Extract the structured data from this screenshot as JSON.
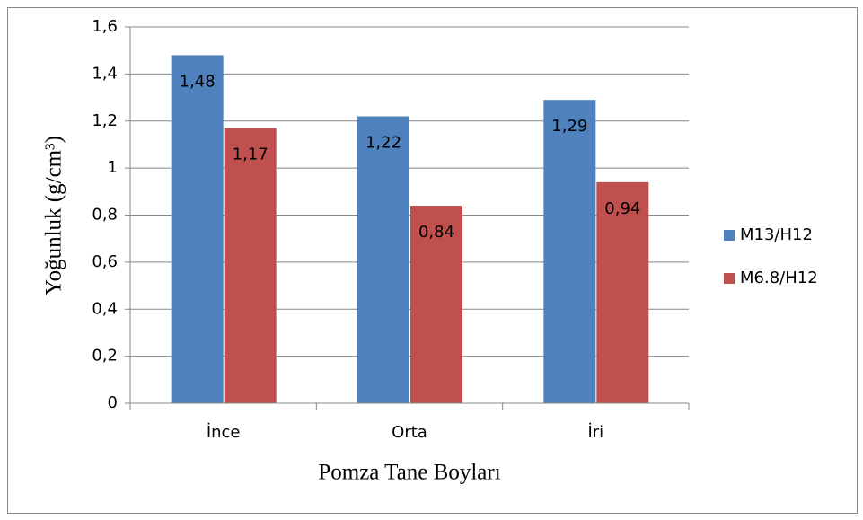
{
  "chart_data": {
    "type": "bar",
    "x_label": "Pomza Tane Boyları",
    "y_label": "Yoğunluk (g/cm³)",
    "categories": [
      "İnce",
      "Orta",
      "İri"
    ],
    "series": [
      {
        "name": "M13/H12",
        "color": "#4f81bd",
        "values": [
          1.48,
          1.22,
          1.29
        ],
        "value_labels": [
          "1,48",
          "1,22",
          "1,29"
        ]
      },
      {
        "name": "M6.8/H12",
        "color": "#c0504d",
        "values": [
          1.17,
          0.84,
          0.94
        ],
        "value_labels": [
          "1,17",
          "0,84",
          "0,94"
        ]
      }
    ],
    "ylim": [
      0,
      1.6
    ],
    "yticks": [
      0,
      {
        "value": 0.2,
        "label": "0,2"
      },
      {
        "value": 0.4,
        "label": "0,4"
      },
      {
        "value": 0.6,
        "label": "0,6"
      },
      {
        "value": 0.8,
        "label": "0,8"
      },
      1,
      {
        "value": 1.2,
        "label": "1,2"
      },
      {
        "value": 1.4,
        "label": "1,4"
      },
      {
        "value": 1.6,
        "label": "1,6"
      }
    ],
    "grid": true,
    "legend": "right"
  }
}
